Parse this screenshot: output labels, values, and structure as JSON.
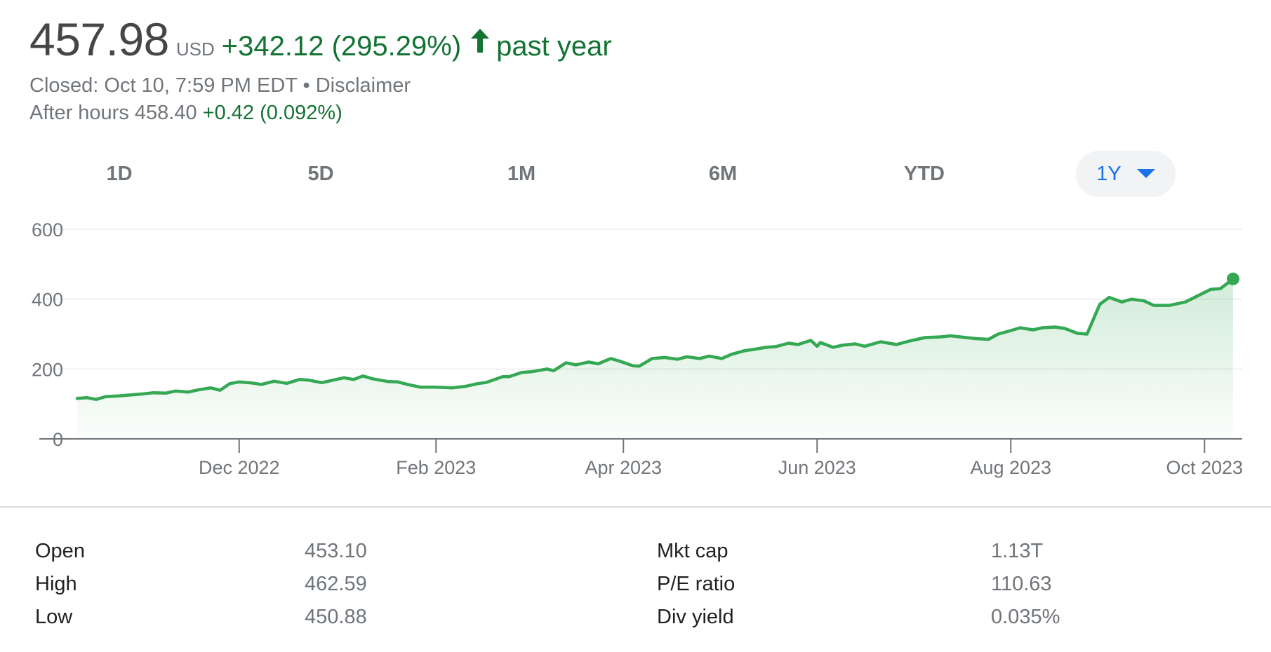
{
  "quote": {
    "price": "457.98",
    "currency": "USD",
    "change": "+342.12 (295.29%)",
    "period": "past year",
    "closed": "Closed: Oct 10, 7:59 PM EDT • Disclaimer",
    "after_hours_label": "After hours 458.40",
    "after_hours_change": "+0.42 (0.092%)",
    "accent_color": "#137333",
    "up_icon": "arrow-up-icon"
  },
  "tabs": [
    {
      "label": "1D"
    },
    {
      "label": "5D"
    },
    {
      "label": "1M"
    },
    {
      "label": "6M"
    },
    {
      "label": "YTD"
    },
    {
      "label": "1Y",
      "selected": true
    }
  ],
  "chart_data": {
    "type": "area",
    "ylim": [
      0,
      600
    ],
    "y_ticks": [
      "0",
      "200",
      "400",
      "600"
    ],
    "x_tick_labels": [
      "Dec 2022",
      "Feb 2023",
      "Apr 2023",
      "Jun 2023",
      "Aug 2023",
      "Oct 2023"
    ],
    "x_tick_dates": [
      "2022-12-01",
      "2023-02-01",
      "2023-04-01",
      "2023-06-01",
      "2023-08-01",
      "2023-10-01"
    ],
    "grid": true,
    "line_color": "#34a853",
    "series": [
      {
        "points": [
          [
            "2022-10-11",
            116
          ],
          [
            "2022-10-14",
            118
          ],
          [
            "2022-10-17",
            113
          ],
          [
            "2022-10-20",
            121
          ],
          [
            "2022-10-24",
            123
          ],
          [
            "2022-10-28",
            126
          ],
          [
            "2022-11-01",
            129
          ],
          [
            "2022-11-04",
            132
          ],
          [
            "2022-11-08",
            131
          ],
          [
            "2022-11-11",
            137
          ],
          [
            "2022-11-15",
            134
          ],
          [
            "2022-11-18",
            140
          ],
          [
            "2022-11-22",
            146
          ],
          [
            "2022-11-25",
            139
          ],
          [
            "2022-11-28",
            158
          ],
          [
            "2022-12-01",
            163
          ],
          [
            "2022-12-05",
            160
          ],
          [
            "2022-12-08",
            156
          ],
          [
            "2022-12-12",
            165
          ],
          [
            "2022-12-16",
            159
          ],
          [
            "2022-12-20",
            170
          ],
          [
            "2022-12-23",
            168
          ],
          [
            "2022-12-27",
            161
          ],
          [
            "2023-01-03",
            175
          ],
          [
            "2023-01-06",
            170
          ],
          [
            "2023-01-09",
            180
          ],
          [
            "2023-01-12",
            172
          ],
          [
            "2023-01-17",
            164
          ],
          [
            "2023-01-20",
            163
          ],
          [
            "2023-01-23",
            156
          ],
          [
            "2023-01-27",
            148
          ],
          [
            "2023-02-01",
            148
          ],
          [
            "2023-02-06",
            146
          ],
          [
            "2023-02-10",
            150
          ],
          [
            "2023-02-14",
            158
          ],
          [
            "2023-02-17",
            162
          ],
          [
            "2023-02-22",
            178
          ],
          [
            "2023-02-24",
            178
          ],
          [
            "2023-02-28",
            190
          ],
          [
            "2023-03-03",
            192
          ],
          [
            "2023-03-08",
            200
          ],
          [
            "2023-03-10",
            195
          ],
          [
            "2023-03-14",
            218
          ],
          [
            "2023-03-17",
            212
          ],
          [
            "2023-03-21",
            220
          ],
          [
            "2023-03-24",
            215
          ],
          [
            "2023-03-28",
            230
          ],
          [
            "2023-03-31",
            222
          ],
          [
            "2023-04-04",
            209
          ],
          [
            "2023-04-06",
            208
          ],
          [
            "2023-04-10",
            230
          ],
          [
            "2023-04-14",
            233
          ],
          [
            "2023-04-18",
            228
          ],
          [
            "2023-04-21",
            235
          ],
          [
            "2023-04-25",
            230
          ],
          [
            "2023-04-28",
            237
          ],
          [
            "2023-05-02",
            230
          ],
          [
            "2023-05-05",
            242
          ],
          [
            "2023-05-09",
            252
          ],
          [
            "2023-05-12",
            256
          ],
          [
            "2023-05-16",
            262
          ],
          [
            "2023-05-19",
            264
          ],
          [
            "2023-05-23",
            274
          ],
          [
            "2023-05-26",
            270
          ],
          [
            "2023-05-30",
            282
          ],
          [
            "2023-06-01",
            265
          ],
          [
            "2023-06-02",
            276
          ],
          [
            "2023-06-06",
            262
          ],
          [
            "2023-06-09",
            268
          ],
          [
            "2023-06-13",
            272
          ],
          [
            "2023-06-16",
            265
          ],
          [
            "2023-06-21",
            278
          ],
          [
            "2023-06-26",
            270
          ],
          [
            "2023-06-30",
            280
          ],
          [
            "2023-07-05",
            290
          ],
          [
            "2023-07-10",
            292
          ],
          [
            "2023-07-13",
            295
          ],
          [
            "2023-07-18",
            290
          ],
          [
            "2023-07-21",
            287
          ],
          [
            "2023-07-25",
            285
          ],
          [
            "2023-07-28",
            300
          ],
          [
            "2023-08-01",
            310
          ],
          [
            "2023-08-04",
            318
          ],
          [
            "2023-08-08",
            312
          ],
          [
            "2023-08-11",
            318
          ],
          [
            "2023-08-15",
            320
          ],
          [
            "2023-08-18",
            316
          ],
          [
            "2023-08-22",
            302
          ],
          [
            "2023-08-25",
            300
          ],
          [
            "2023-08-29",
            385
          ],
          [
            "2023-09-01",
            405
          ],
          [
            "2023-09-05",
            392
          ],
          [
            "2023-09-08",
            400
          ],
          [
            "2023-09-12",
            395
          ],
          [
            "2023-09-15",
            382
          ],
          [
            "2023-09-20",
            382
          ],
          [
            "2023-09-25",
            392
          ],
          [
            "2023-09-29",
            410
          ],
          [
            "2023-10-03",
            428
          ],
          [
            "2023-10-06",
            430
          ],
          [
            "2023-10-10",
            457.98
          ]
        ]
      }
    ]
  },
  "stats": [
    {
      "label": "Open",
      "value": "453.10",
      "label2": "Mkt cap",
      "value2": "1.13T"
    },
    {
      "label": "High",
      "value": "462.59",
      "label2": "P/E ratio",
      "value2": "110.63"
    },
    {
      "label": "Low",
      "value": "450.88",
      "label2": "Div yield",
      "value2": "0.035%"
    }
  ]
}
